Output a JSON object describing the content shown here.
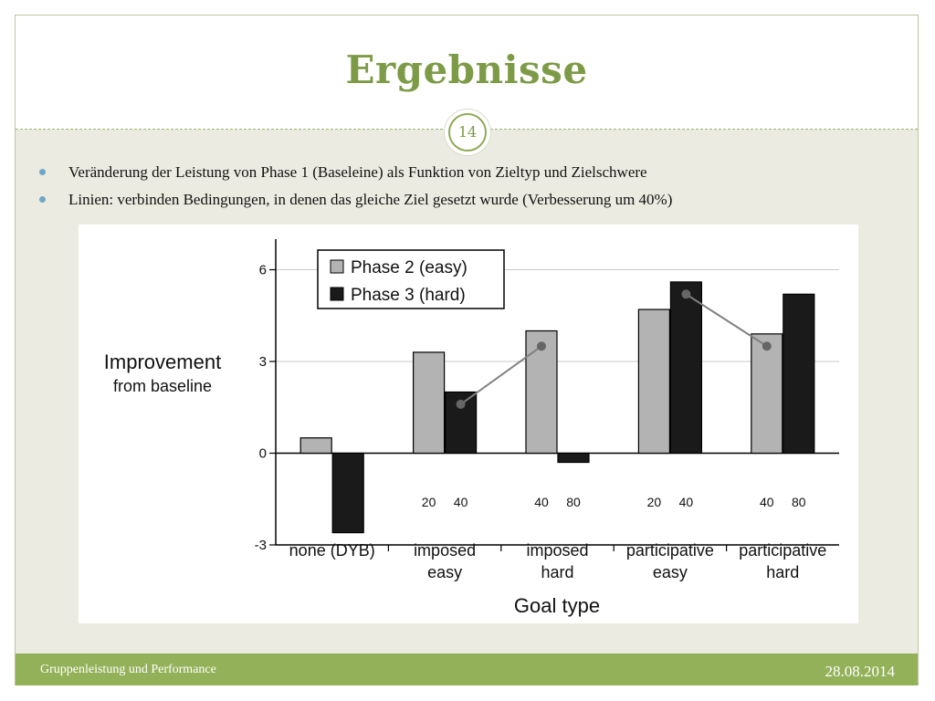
{
  "slide": {
    "title": "Ergebnisse",
    "number": "14",
    "bullets": [
      "Veränderung der Leistung von Phase 1 (Baseleine) als Funktion von Zieltyp und Zielschwere",
      "Linien: verbinden Bedingungen, in denen das gleiche Ziel gesetzt wurde (Verbesserung um 40%)"
    ],
    "footer_left": "Gruppenleistung und Performance",
    "footer_right": "28.08.2014"
  },
  "colors": {
    "accent": "#7d9b47",
    "footer": "#93b158",
    "phase2": "#b3b3b3",
    "phase3": "#1a1a1a",
    "connector": "#808080"
  },
  "chart_data": {
    "type": "bar",
    "ylabel": "Improvement from baseline",
    "ylabel_lines": [
      "Improvement",
      "from baseline"
    ],
    "xlabel": "Goal type",
    "ylim": [
      -3,
      7
    ],
    "yticks": [
      6,
      3,
      0,
      -3
    ],
    "grid": true,
    "legend_position": "top-left",
    "categories": [
      [
        "none (DYB)"
      ],
      [
        "imposed",
        "easy"
      ],
      [
        "imposed",
        "hard"
      ],
      [
        "participative",
        "easy"
      ],
      [
        "participative",
        "hard"
      ]
    ],
    "series": [
      {
        "name": "Phase 2 (easy)",
        "values": [
          0.5,
          3.3,
          4.0,
          4.7,
          3.9
        ]
      },
      {
        "name": "Phase 3 (hard)",
        "values": [
          -2.6,
          2.0,
          -0.3,
          5.6,
          5.2
        ]
      }
    ],
    "goal_labels": [
      [
        "",
        ""
      ],
      [
        "20",
        "40"
      ],
      [
        "40",
        "80"
      ],
      [
        "20",
        "40"
      ],
      [
        "40",
        "80"
      ]
    ],
    "connector_lines": [
      {
        "points": [
          {
            "category": 1,
            "series": 1,
            "value": 1.6
          },
          {
            "category": 2,
            "series": 0,
            "value": 3.5
          }
        ]
      },
      {
        "points": [
          {
            "category": 3,
            "series": 1,
            "value": 5.2
          },
          {
            "category": 4,
            "series": 0,
            "value": 3.5
          }
        ]
      }
    ]
  }
}
